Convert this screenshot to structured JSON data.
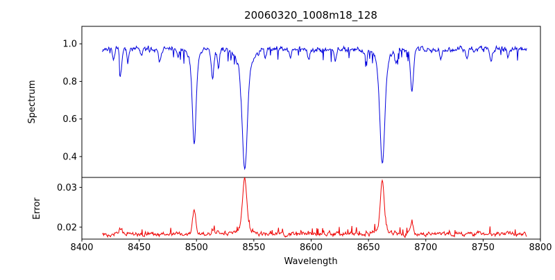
{
  "chart_data": {
    "type": "line",
    "title": "20060320_1008m18_128",
    "xlabel": "Wavelength",
    "xlim": [
      8400,
      8800
    ],
    "x_data_range": [
      8418,
      8788
    ],
    "x_step": 0.5,
    "xticks": [
      8400,
      8450,
      8500,
      8550,
      8600,
      8650,
      8700,
      8750,
      8800
    ],
    "grid": false,
    "legend": "none",
    "panels": [
      {
        "name": "spectrum",
        "ylabel": "Spectrum",
        "color": "#0000dd",
        "ylim": [
          0.289,
          1.093
        ],
        "yticks": [
          0.4,
          0.6,
          0.8,
          1.0
        ],
        "ytick_labels": [
          "0.4",
          "0.6",
          "0.8",
          "1.0"
        ],
        "continuum": 0.972,
        "noise_model": {
          "seed": 7,
          "amp": 0.03,
          "smooth": 0.45,
          "dip_prob": 0.05,
          "dip_base": 0.015,
          "dip_extra": 0.05
        },
        "absorption_lines": [
          {
            "center": 8428.0,
            "depth": 0.05,
            "sigma": 1.0
          },
          {
            "center": 8434.0,
            "depth": 0.13,
            "sigma": 1.0
          },
          {
            "center": 8440.0,
            "depth": 0.05,
            "sigma": 0.9
          },
          {
            "center": 8452.0,
            "depth": 0.04,
            "sigma": 0.9
          },
          {
            "center": 8468.0,
            "depth": 0.06,
            "sigma": 1.0
          },
          {
            "center": 8484.0,
            "depth": 0.05,
            "sigma": 0.9
          },
          {
            "center": 8498.0,
            "depth": 0.43,
            "sigma": 1.5
          },
          {
            "center": 8498.0,
            "depth": 0.08,
            "sigma": 4.0
          },
          {
            "center": 8514.0,
            "depth": 0.15,
            "sigma": 1.2
          },
          {
            "center": 8519.0,
            "depth": 0.1,
            "sigma": 1.0
          },
          {
            "center": 8542.1,
            "depth": 0.52,
            "sigma": 2.1
          },
          {
            "center": 8542.1,
            "depth": 0.12,
            "sigma": 6.0
          },
          {
            "center": 8560.0,
            "depth": 0.05,
            "sigma": 0.9
          },
          {
            "center": 8582.0,
            "depth": 0.05,
            "sigma": 0.9
          },
          {
            "center": 8598.0,
            "depth": 0.06,
            "sigma": 1.0
          },
          {
            "center": 8621.0,
            "depth": 0.05,
            "sigma": 0.9
          },
          {
            "center": 8648.0,
            "depth": 0.07,
            "sigma": 1.0
          },
          {
            "center": 8662.1,
            "depth": 0.5,
            "sigma": 2.0
          },
          {
            "center": 8662.1,
            "depth": 0.11,
            "sigma": 5.0
          },
          {
            "center": 8674.0,
            "depth": 0.07,
            "sigma": 1.0
          },
          {
            "center": 8688.0,
            "depth": 0.22,
            "sigma": 1.3
          },
          {
            "center": 8713.0,
            "depth": 0.05,
            "sigma": 0.9
          },
          {
            "center": 8736.0,
            "depth": 0.05,
            "sigma": 0.9
          },
          {
            "center": 8757.0,
            "depth": 0.06,
            "sigma": 1.0
          },
          {
            "center": 8772.0,
            "depth": 0.05,
            "sigma": 0.9
          }
        ]
      },
      {
        "name": "error",
        "ylabel": "Error",
        "color": "#ee0000",
        "ylim": [
          0.017,
          0.0325
        ],
        "yticks": [
          0.02,
          0.03
        ],
        "ytick_labels": [
          "0.02",
          "0.03"
        ],
        "baseline": 0.0183,
        "noise_model": {
          "seed": 13,
          "amp": 0.0012,
          "smooth": 0.5,
          "spike_prob": 0.05,
          "spike_base": 0.0006,
          "spike_extra": 0.0012
        },
        "peaks": [
          {
            "center": 8434.0,
            "height": 0.0012,
            "sigma": 1.2
          },
          {
            "center": 8498.0,
            "height": 0.006,
            "sigma": 1.4
          },
          {
            "center": 8514.0,
            "height": 0.0014,
            "sigma": 1.1
          },
          {
            "center": 8519.0,
            "height": 0.0008,
            "sigma": 1.0
          },
          {
            "center": 8542.0,
            "height": 0.012,
            "sigma": 1.8
          },
          {
            "center": 8542.0,
            "height": 0.0018,
            "sigma": 5.0
          },
          {
            "center": 8662.0,
            "height": 0.012,
            "sigma": 1.6
          },
          {
            "center": 8662.0,
            "height": 0.0015,
            "sigma": 4.5
          },
          {
            "center": 8674.0,
            "height": 0.0007,
            "sigma": 1.0
          },
          {
            "center": 8688.0,
            "height": 0.0028,
            "sigma": 1.2
          }
        ]
      }
    ]
  }
}
